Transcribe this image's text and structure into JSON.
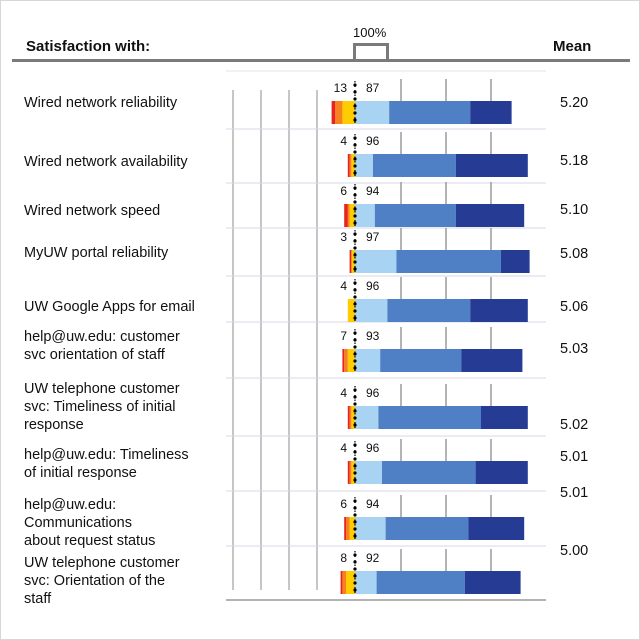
{
  "header": {
    "left_label": "Satisfaction with:",
    "right_label": "Mean",
    "scale_label": "100%"
  },
  "colors": {
    "very_dissatisfied": "#e8241c",
    "dissatisfied": "#f5821f",
    "somewhat_dissatisfied": "#ffcc00",
    "somewhat_satisfied": "#a9d3f2",
    "satisfied": "#4f7fc4",
    "very_satisfied": "#253b94",
    "grid": "#8c8c8c"
  },
  "chart_data": {
    "type": "bar",
    "subtype": "diverging-stacked-horizontal",
    "title": "",
    "xlabel": "",
    "ylabel": "Satisfaction with:",
    "scale_note": "100%",
    "segments_negative": [
      "very_dissatisfied",
      "dissatisfied",
      "somewhat_dissatisfied"
    ],
    "segments_positive": [
      "somewhat_satisfied",
      "satisfied",
      "very_satisfied"
    ],
    "categories": [
      "Wired network reliability",
      "Wired network availability",
      "Wired network speed",
      "MyUW portal reliability",
      "UW Google Apps for email",
      "help@uw.edu: customer svc orientation of staff",
      "UW telephone customer svc: Timeliness of initial response",
      "help@uw.edu: Timeliness of initial response",
      "help@uw.edu: Communications about request status",
      "UW telephone customer svc: Orientation of the staff"
    ],
    "label_lines": [
      [
        "Wired network reliability"
      ],
      [
        "Wired network availability"
      ],
      [
        "Wired network speed"
      ],
      [
        "MyUW portal reliability"
      ],
      [
        "UW Google Apps for email"
      ],
      [
        "help@uw.edu: customer",
        "svc orientation of staff"
      ],
      [
        "UW telephone customer",
        "svc: Timeliness of initial",
        "response"
      ],
      [
        "help@uw.edu: Timeliness",
        "of initial response"
      ],
      [
        "help@uw.edu:",
        "Communications",
        "about request status"
      ],
      [
        "UW telephone customer",
        "svc: Orientation of the",
        "staff"
      ]
    ],
    "dissatisfied_pct": [
      13,
      4,
      6,
      3,
      4,
      7,
      4,
      4,
      6,
      8
    ],
    "satisfied_pct": [
      87,
      96,
      94,
      97,
      96,
      93,
      96,
      96,
      94,
      92
    ],
    "means": [
      "5.20",
      "5.18",
      "5.10",
      "5.08",
      "5.06",
      "5.03",
      "5.02",
      "5.01",
      "5.01",
      "5.00"
    ],
    "series": [
      {
        "name": "very_dissatisfied",
        "values": [
          2,
          1,
          2,
          1,
          0,
          1,
          1,
          1,
          1,
          1
        ]
      },
      {
        "name": "dissatisfied",
        "values": [
          4,
          1,
          1,
          0,
          0,
          2,
          1,
          1,
          2,
          2
        ]
      },
      {
        "name": "somewhat_dissatisfied",
        "values": [
          7,
          2,
          3,
          2,
          4,
          4,
          2,
          2,
          3,
          5
        ]
      },
      {
        "name": "somewhat_satisfied",
        "values": [
          19,
          10,
          11,
          23,
          18,
          14,
          13,
          15,
          17,
          12
        ]
      },
      {
        "name": "satisfied",
        "values": [
          45,
          46,
          45,
          58,
          46,
          45,
          57,
          52,
          46,
          49
        ]
      },
      {
        "name": "very_satisfied",
        "values": [
          23,
          40,
          38,
          16,
          32,
          34,
          26,
          29,
          31,
          31
        ]
      }
    ]
  }
}
